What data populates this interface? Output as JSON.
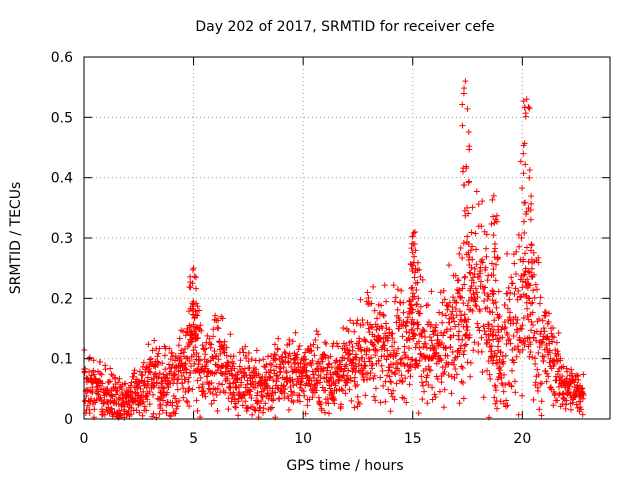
{
  "chart_data": {
    "type": "scatter",
    "title": "Day 202 of 2017, SRMTID for receiver cefe",
    "xlabel": "GPS time / hours",
    "ylabel": "SRMTID / TECUs",
    "xlim": [
      0,
      24
    ],
    "ylim": [
      0,
      0.6
    ],
    "xticks": [
      0,
      5,
      10,
      15,
      20
    ],
    "yticks": [
      0,
      0.1,
      0.2,
      0.3,
      0.4,
      0.5,
      0.6
    ],
    "xtick_labels": [
      "0",
      "5",
      "10",
      "15",
      "20"
    ],
    "ytick_labels": [
      "0",
      "0.1",
      "0.2",
      "0.3",
      "0.4",
      "0.5",
      "0.6"
    ],
    "grid": true,
    "marker": "+",
    "color": "#ff0000",
    "x_data_range": [
      0,
      22.8
    ],
    "envelope": [
      {
        "t": 0.0,
        "center": 0.06,
        "spread": 0.05
      },
      {
        "t": 1.0,
        "center": 0.04,
        "spread": 0.04
      },
      {
        "t": 2.0,
        "center": 0.03,
        "spread": 0.03
      },
      {
        "t": 3.0,
        "center": 0.06,
        "spread": 0.05
      },
      {
        "t": 4.0,
        "center": 0.06,
        "spread": 0.05
      },
      {
        "t": 5.0,
        "center": 0.12,
        "spread": 0.08
      },
      {
        "t": 5.5,
        "center": 0.07,
        "spread": 0.05
      },
      {
        "t": 6.0,
        "center": 0.1,
        "spread": 0.06
      },
      {
        "t": 7.0,
        "center": 0.06,
        "spread": 0.04
      },
      {
        "t": 8.0,
        "center": 0.06,
        "spread": 0.05
      },
      {
        "t": 9.0,
        "center": 0.07,
        "spread": 0.05
      },
      {
        "t": 10.0,
        "center": 0.08,
        "spread": 0.05
      },
      {
        "t": 11.0,
        "center": 0.07,
        "spread": 0.05
      },
      {
        "t": 12.0,
        "center": 0.08,
        "spread": 0.05
      },
      {
        "t": 13.0,
        "center": 0.13,
        "spread": 0.07
      },
      {
        "t": 14.0,
        "center": 0.12,
        "spread": 0.07
      },
      {
        "t": 15.0,
        "center": 0.14,
        "spread": 0.09
      },
      {
        "t": 16.0,
        "center": 0.1,
        "spread": 0.07
      },
      {
        "t": 17.0,
        "center": 0.14,
        "spread": 0.09
      },
      {
        "t": 18.0,
        "center": 0.22,
        "spread": 0.12
      },
      {
        "t": 19.0,
        "center": 0.09,
        "spread": 0.07
      },
      {
        "t": 20.0,
        "center": 0.22,
        "spread": 0.16
      },
      {
        "t": 21.0,
        "center": 0.12,
        "spread": 0.08
      },
      {
        "t": 22.0,
        "center": 0.05,
        "spread": 0.03
      },
      {
        "t": 22.8,
        "center": 0.04,
        "spread": 0.03
      }
    ],
    "peaks": [
      {
        "x": 5.0,
        "y": 0.25
      },
      {
        "x": 15.1,
        "y": 0.31
      },
      {
        "x": 17.4,
        "y": 0.56
      },
      {
        "x": 18.7,
        "y": 0.37
      },
      {
        "x": 20.2,
        "y": 0.53
      }
    ]
  }
}
